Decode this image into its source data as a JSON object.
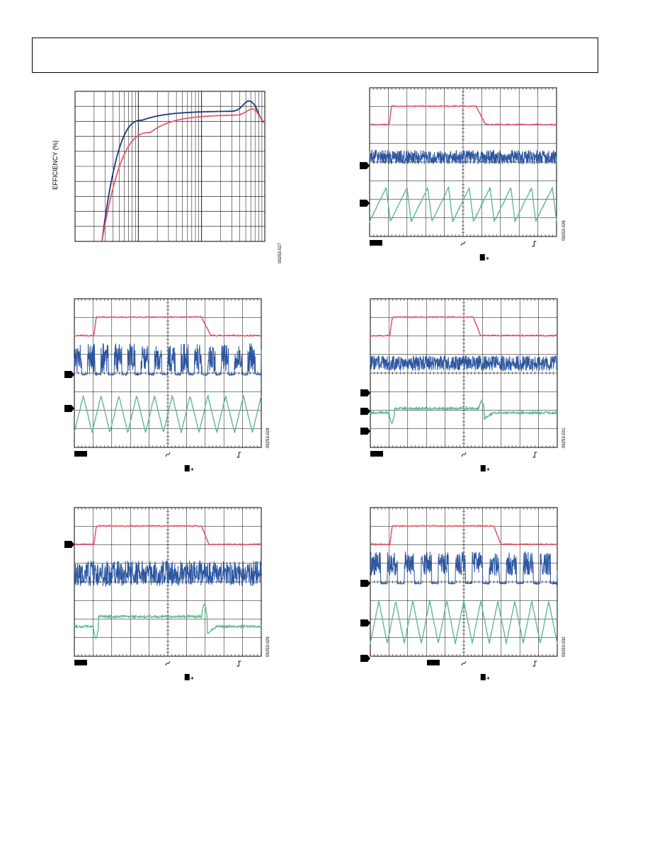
{
  "colors": {
    "red": "#e8586e",
    "blue": "#2c56a0",
    "green": "#5dbb8e",
    "navy": "#1a3a7a",
    "pink": "#e8586e",
    "grid": "#000000"
  },
  "chart_data": [
    {
      "type": "line",
      "ylabel": "EFFICIENCY (%)",
      "figure_id": "09253-027",
      "x_scale": "log",
      "x_decades": 3,
      "grid": true,
      "series": [
        {
          "color": "navy",
          "x": [
            0.0001,
            0.0003,
            0.001,
            0.003,
            0.01,
            0.03,
            0.1,
            0.3,
            0.5,
            0.8,
            1.0
          ],
          "y": [
            0,
            45,
            80,
            88,
            89.5,
            90,
            90,
            91.5,
            94,
            90,
            85
          ]
        },
        {
          "color": "pink",
          "x": [
            0.0001,
            0.0003,
            0.001,
            0.003,
            0.01,
            0.03,
            0.1,
            0.3,
            0.5,
            0.8,
            1.0
          ],
          "y": [
            0,
            40,
            71,
            80,
            84,
            86.5,
            87,
            87.5,
            89,
            87,
            84
          ]
        }
      ],
      "ylim": [
        0,
        100
      ]
    },
    {
      "type": "line",
      "figure_id": "09253-028",
      "traces": [
        "red-step",
        "blue-switching-burst",
        "green-sawtooth-large"
      ]
    },
    {
      "type": "line",
      "figure_id": "09253-029",
      "traces": [
        "red-step",
        "blue-switching-dense",
        "green-sawtooth-mid"
      ]
    },
    {
      "type": "line",
      "figure_id": "09253-030",
      "traces": [
        "red-step",
        "blue-switching-burst-wide",
        "green-ripple-small"
      ]
    },
    {
      "type": "line",
      "figure_id": "09253-031",
      "traces": [
        "red-step",
        "blue-switching-noise",
        "green-droop"
      ]
    },
    {
      "type": "line",
      "figure_id": "09253-032",
      "traces": [
        "red-step",
        "blue-switching-pulses",
        "green-sawtooth-tall"
      ]
    }
  ]
}
